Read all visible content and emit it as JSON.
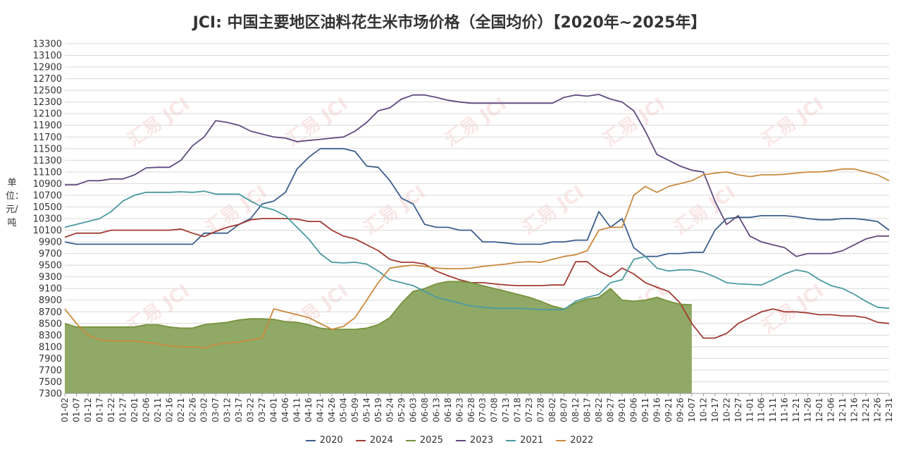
{
  "chart_data": {
    "type": "line",
    "title": "JCI: 中国主要地区油料花生米市场价格（全国均价）【2020年~2025年】",
    "ylabel": "单位：元/吨",
    "ylim": [
      7300,
      13300
    ],
    "ytick_step": 200,
    "grid": true,
    "legend_position": "bottom",
    "watermark": "汇易 JCI",
    "x_categories": [
      "01-02",
      "01-07",
      "01-12",
      "01-17",
      "01-22",
      "01-27",
      "02-01",
      "02-06",
      "02-11",
      "02-16",
      "02-21",
      "02-26",
      "03-02",
      "03-07",
      "03-12",
      "03-17",
      "03-22",
      "03-27",
      "04-01",
      "04-06",
      "04-11",
      "04-16",
      "04-21",
      "04-26",
      "05-04",
      "05-09",
      "05-14",
      "05-19",
      "05-24",
      "05-29",
      "06-03",
      "06-08",
      "06-13",
      "06-18",
      "06-23",
      "06-28",
      "07-03",
      "07-08",
      "07-13",
      "07-18",
      "07-23",
      "07-28",
      "08-02",
      "08-07",
      "08-12",
      "08-17",
      "08-22",
      "08-27",
      "09-01",
      "09-06",
      "09-11",
      "09-16",
      "09-21",
      "09-26",
      "10-07",
      "10-12",
      "10-17",
      "10-22",
      "10-27",
      "11-01",
      "11-06",
      "11-11",
      "11-16",
      "11-21",
      "11-26",
      "12-01",
      "12-06",
      "12-11",
      "12-16",
      "12-21",
      "12-26",
      "12-31"
    ],
    "series": [
      {
        "name": "2020",
        "color": "#3b5f8e",
        "fill": false,
        "values": [
          9900,
          9860,
          9860,
          9860,
          9860,
          9860,
          9860,
          9860,
          9860,
          9860,
          9860,
          9860,
          10050,
          10050,
          10050,
          10200,
          10300,
          10550,
          10600,
          10750,
          11150,
          11350,
          11500,
          11500,
          11500,
          11450,
          11200,
          11180,
          10950,
          10650,
          10550,
          10200,
          10150,
          10150,
          10100,
          10100,
          9900,
          9900,
          9880,
          9860,
          9860,
          9860,
          9900,
          9900,
          9930,
          9930,
          10420,
          10150,
          10300,
          9800,
          9650,
          9650,
          9700,
          9700,
          9720,
          9720,
          10100,
          10300,
          10320,
          10320,
          10350,
          10350,
          10350,
          10330,
          10300,
          10280,
          10280,
          10300,
          10300,
          10280,
          10250,
          10100
        ]
      },
      {
        "name": "2024",
        "color": "#a23b32",
        "fill": false,
        "values": [
          9980,
          10050,
          10050,
          10050,
          10100,
          10100,
          10100,
          10100,
          10100,
          10100,
          10120,
          10050,
          9990,
          10080,
          10150,
          10200,
          10280,
          10300,
          10300,
          10300,
          10290,
          10250,
          10250,
          10100,
          10000,
          9950,
          9850,
          9750,
          9600,
          9550,
          9550,
          9520,
          9400,
          9320,
          9250,
          9200,
          9200,
          9180,
          9160,
          9150,
          9150,
          9150,
          9160,
          9160,
          9560,
          9560,
          9400,
          9300,
          9450,
          9350,
          9200,
          9120,
          9050,
          8850,
          8500,
          8250,
          8250,
          8330,
          8500,
          8600,
          8700,
          8750,
          8700,
          8700,
          8680,
          8650,
          8650,
          8630,
          8630,
          8600,
          8520,
          8500
        ]
      },
      {
        "name": "2025",
        "color": "#76923c",
        "fill": true,
        "fill_color": "#8aa45e",
        "values": [
          8500,
          8440,
          8440,
          8440,
          8440,
          8440,
          8440,
          8480,
          8480,
          8440,
          8420,
          8420,
          8480,
          8500,
          8520,
          8560,
          8580,
          8580,
          8570,
          8530,
          8520,
          8480,
          8420,
          8400,
          8400,
          8400,
          8420,
          8480,
          8600,
          8850,
          9050,
          9100,
          9180,
          9220,
          9220,
          9200,
          9150,
          9100,
          9050,
          9000,
          8950,
          8880,
          8800,
          8750,
          8850,
          8920,
          8950,
          9100,
          8900,
          8880,
          8900,
          8950,
          8880,
          8830,
          8820
        ]
      },
      {
        "name": "2023",
        "color": "#5f4a7f",
        "fill": false,
        "values": [
          10880,
          10880,
          10950,
          10950,
          10980,
          10980,
          11050,
          11170,
          11180,
          11180,
          11300,
          11550,
          11700,
          11980,
          11950,
          11900,
          11800,
          11750,
          11700,
          11680,
          11620,
          11640,
          11660,
          11680,
          11700,
          11800,
          11950,
          12150,
          12200,
          12350,
          12420,
          12420,
          12380,
          12330,
          12300,
          12280,
          12280,
          12280,
          12280,
          12280,
          12280,
          12280,
          12280,
          12380,
          12420,
          12400,
          12430,
          12350,
          12300,
          12150,
          11800,
          11400,
          11300,
          11200,
          11130,
          11100,
          10600,
          10200,
          10350,
          10000,
          9900,
          9850,
          9800,
          9650,
          9700,
          9700,
          9700,
          9750,
          9850,
          9950,
          10000,
          10000
        ]
      },
      {
        "name": "2021",
        "color": "#4a9aa0",
        "fill": false,
        "values": [
          10150,
          10200,
          10250,
          10300,
          10420,
          10600,
          10700,
          10750,
          10750,
          10750,
          10760,
          10750,
          10770,
          10720,
          10720,
          10720,
          10600,
          10500,
          10450,
          10350,
          10150,
          9950,
          9700,
          9550,
          9540,
          9550,
          9520,
          9400,
          9250,
          9200,
          9150,
          9050,
          8950,
          8900,
          8850,
          8800,
          8780,
          8760,
          8760,
          8760,
          8750,
          8740,
          8740,
          8740,
          8880,
          8950,
          9000,
          9200,
          9250,
          9600,
          9650,
          9450,
          9400,
          9420,
          9420,
          9380,
          9300,
          9200,
          9180,
          9170,
          9160,
          9250,
          9350,
          9420,
          9380,
          9250,
          9150,
          9100,
          9000,
          8880,
          8780,
          8760
        ]
      },
      {
        "name": "2022",
        "color": "#c98a3e",
        "fill": false,
        "values": [
          8750,
          8500,
          8300,
          8220,
          8200,
          8200,
          8200,
          8180,
          8150,
          8120,
          8100,
          8100,
          8080,
          8140,
          8170,
          8180,
          8220,
          8250,
          8750,
          8700,
          8650,
          8600,
          8500,
          8400,
          8450,
          8600,
          8900,
          9200,
          9450,
          9480,
          9500,
          9480,
          9450,
          9440,
          9440,
          9450,
          9480,
          9500,
          9520,
          9550,
          9560,
          9550,
          9600,
          9650,
          9680,
          9750,
          10100,
          10150,
          10150,
          10700,
          10850,
          10750,
          10850,
          10900,
          10950,
          11050,
          11080,
          11100,
          11050,
          11020,
          11050,
          11050,
          11060,
          11080,
          11100,
          11100,
          11120,
          11150,
          11150,
          11100,
          11050,
          10950
        ]
      }
    ]
  }
}
